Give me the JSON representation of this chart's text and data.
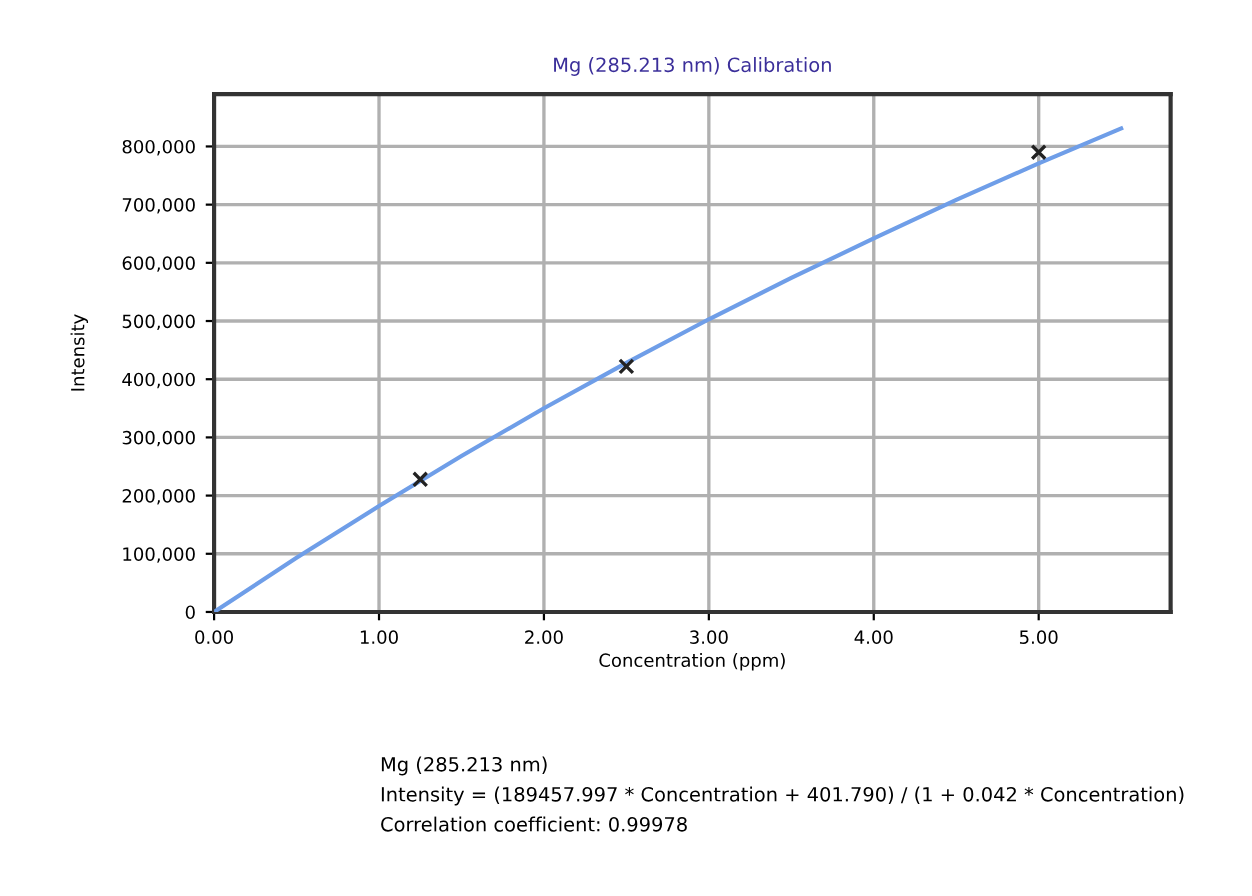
{
  "chart_data": {
    "type": "line",
    "title": "Mg (285.213 nm) Calibration",
    "xlabel": "Concentration (ppm)",
    "ylabel": "Intensity",
    "series": [
      {
        "color": "#6f9ee8",
        "x": [
          0,
          0.5,
          1,
          1.5,
          2,
          2.5,
          3,
          3.5,
          4,
          4.5,
          5,
          5.5
        ],
        "values": [
          0,
          93000,
          182000,
          268000,
          350000,
          428000,
          503000,
          574000,
          642000,
          708000,
          771000,
          831000
        ],
        "marker": "none",
        "line_style": "solid"
      },
      {
        "type": "scatter",
        "color": "#222222",
        "x": [
          1.25,
          2.5,
          5.0
        ],
        "values": [
          228000,
          422000,
          790000
        ],
        "marker": "cross"
      }
    ],
    "xlim": [
      0,
      5.8
    ],
    "xticks": [
      {
        "value": 0,
        "label": "0.00"
      },
      {
        "value": 1,
        "label": "1.00"
      },
      {
        "value": 2,
        "label": "2.00"
      },
      {
        "value": 3,
        "label": "3.00"
      },
      {
        "value": 4,
        "label": "4.00"
      },
      {
        "value": 5,
        "label": "5.00"
      }
    ],
    "ylim": [
      0,
      890000
    ],
    "yticks": [
      0,
      {
        "value": 100000,
        "label": "100,000"
      },
      {
        "value": 200000,
        "label": "200,000"
      },
      {
        "value": 300000,
        "label": "300,000"
      },
      {
        "value": 400000,
        "label": "400,000"
      },
      {
        "value": 500000,
        "label": "500,000"
      },
      {
        "value": 600000,
        "label": "600,000"
      },
      {
        "value": 700000,
        "label": "700,000"
      },
      {
        "value": 800000,
        "label": "800,000"
      }
    ],
    "grid": true,
    "legend": false,
    "annotations": [
      "Mg (285.213 nm)",
      "Intensity = (189457.997 * Concentration + 401.790) / (1 + 0.042 * Concentration)",
      "Correlation coefficient: 0.99978"
    ]
  }
}
